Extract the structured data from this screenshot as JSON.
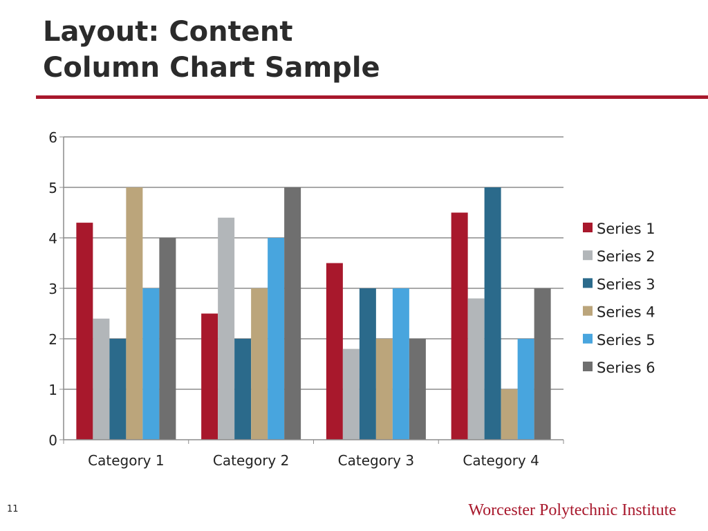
{
  "slide": {
    "title_line1": "Layout: Content",
    "title_line2": "Column Chart Sample",
    "page_number": "11",
    "institution": "Worcester Polytechnic Institute"
  },
  "colors": {
    "accent": "#a8182c",
    "title_text": "#2b2b2b",
    "axis": "#8c8c8c",
    "gridline": "#8c8c8c"
  },
  "chart_data": {
    "type": "bar",
    "title": "",
    "xlabel": "",
    "ylabel": "",
    "categories": [
      "Category 1",
      "Category 2",
      "Category 3",
      "Category 4"
    ],
    "ylim": [
      0,
      6
    ],
    "yticks": [
      "0",
      "1",
      "2",
      "3",
      "4",
      "5",
      "6"
    ],
    "grid": true,
    "legend": "right",
    "series": [
      {
        "name": "Series 1",
        "color": "#a8182c",
        "values": [
          4.3,
          2.5,
          3.5,
          4.5
        ]
      },
      {
        "name": "Series 2",
        "color": "#b2b6b9",
        "values": [
          2.4,
          4.4,
          1.8,
          2.8
        ]
      },
      {
        "name": "Series 3",
        "color": "#2b6a8b",
        "values": [
          2,
          2,
          3,
          5
        ]
      },
      {
        "name": "Series 4",
        "color": "#bba57b",
        "values": [
          5,
          3,
          2,
          1
        ]
      },
      {
        "name": "Series 5",
        "color": "#48a5de",
        "values": [
          3,
          4,
          3,
          2
        ]
      },
      {
        "name": "Series 6",
        "color": "#6f6f6f",
        "values": [
          4,
          5,
          2,
          3
        ]
      }
    ]
  }
}
